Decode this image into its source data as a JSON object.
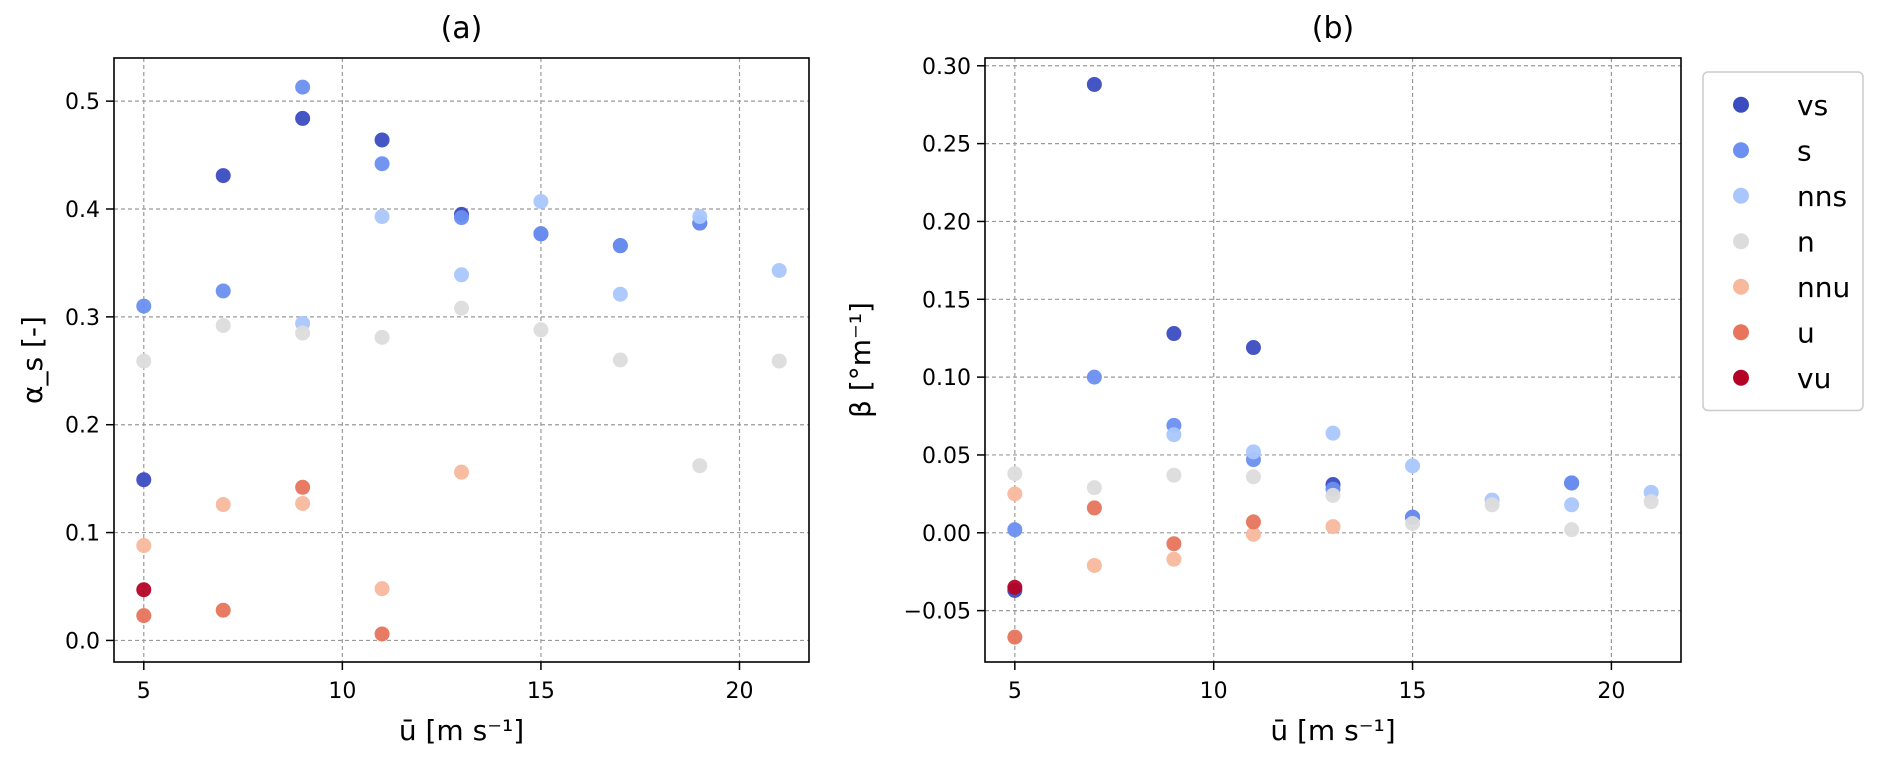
{
  "chart_data": [
    {
      "type": "scatter",
      "title": "(a)",
      "xlabel": "ū [m s⁻¹]",
      "ylabel": "α_s [-]",
      "xlim": [
        4.25,
        21.75
      ],
      "ylim": [
        -0.02,
        0.54
      ],
      "xticks": [
        5,
        10,
        15,
        20
      ],
      "yticks": [
        0.0,
        0.1,
        0.2,
        0.3,
        0.4,
        0.5
      ],
      "ytick_labels": [
        "0.0",
        "0.1",
        "0.2",
        "0.3",
        "0.4",
        "0.5"
      ],
      "grid": true,
      "series": [
        {
          "name": "vs",
          "color": "#3b4cc0",
          "points": [
            [
              5,
              0.149
            ],
            [
              7,
              0.431
            ],
            [
              9,
              0.484
            ],
            [
              11,
              0.464
            ],
            [
              13,
              0.395
            ],
            [
              15,
              0.377
            ],
            [
              17,
              0.366
            ],
            [
              19,
              0.387
            ]
          ]
        },
        {
          "name": "s",
          "color": "#6c8ff1",
          "points": [
            [
              5,
              0.31
            ],
            [
              7,
              0.324
            ],
            [
              9,
              0.513
            ],
            [
              11,
              0.442
            ],
            [
              13,
              0.392
            ],
            [
              15,
              0.377
            ],
            [
              17,
              0.366
            ],
            [
              19,
              0.387
            ]
          ]
        },
        {
          "name": "nns",
          "color": "#aac7fd",
          "points": [
            [
              9,
              0.294
            ],
            [
              11,
              0.393
            ],
            [
              13,
              0.339
            ],
            [
              15,
              0.407
            ],
            [
              17,
              0.321
            ],
            [
              19,
              0.393
            ],
            [
              21,
              0.343
            ]
          ]
        },
        {
          "name": "n",
          "color": "#dddcdc",
          "points": [
            [
              5,
              0.259
            ],
            [
              7,
              0.292
            ],
            [
              9,
              0.285
            ],
            [
              11,
              0.281
            ],
            [
              13,
              0.308
            ],
            [
              15,
              0.288
            ],
            [
              17,
              0.26
            ],
            [
              19,
              0.162
            ],
            [
              21,
              0.259
            ]
          ]
        },
        {
          "name": "nnu",
          "color": "#f7b89c",
          "points": [
            [
              5,
              0.088
            ],
            [
              7,
              0.126
            ],
            [
              9,
              0.127
            ],
            [
              11,
              0.048
            ],
            [
              13,
              0.156
            ]
          ]
        },
        {
          "name": "u",
          "color": "#e7745b",
          "points": [
            [
              5,
              0.023
            ],
            [
              7,
              0.028
            ],
            [
              9,
              0.142
            ],
            [
              11,
              0.006
            ]
          ]
        },
        {
          "name": "vu",
          "color": "#b40426",
          "points": [
            [
              5,
              0.047
            ]
          ]
        }
      ]
    },
    {
      "type": "scatter",
      "title": "(b)",
      "xlabel": "ū [m s⁻¹]",
      "ylabel": "β [°m⁻¹]",
      "xlim": [
        4.25,
        21.75
      ],
      "ylim": [
        -0.083,
        0.305
      ],
      "xticks": [
        5,
        10,
        15,
        20
      ],
      "yticks": [
        -0.05,
        0.0,
        0.05,
        0.1,
        0.15,
        0.2,
        0.25,
        0.3
      ],
      "ytick_labels": [
        "−0.05",
        "0.00",
        "0.05",
        "0.10",
        "0.15",
        "0.20",
        "0.25",
        "0.30"
      ],
      "grid": true,
      "series": [
        {
          "name": "vs",
          "color": "#3b4cc0",
          "points": [
            [
              5,
              -0.037
            ],
            [
              7,
              0.288
            ],
            [
              9,
              0.128
            ],
            [
              11,
              0.119
            ],
            [
              13,
              0.031
            ],
            [
              15,
              0.01
            ],
            [
              19,
              0.032
            ]
          ]
        },
        {
          "name": "s",
          "color": "#6c8ff1",
          "points": [
            [
              5,
              0.002
            ],
            [
              7,
              0.1
            ],
            [
              9,
              0.069
            ],
            [
              11,
              0.047
            ],
            [
              13,
              0.028
            ],
            [
              15,
              0.01
            ],
            [
              19,
              0.032
            ]
          ]
        },
        {
          "name": "nns",
          "color": "#aac7fd",
          "points": [
            [
              9,
              0.063
            ],
            [
              11,
              0.052
            ],
            [
              13,
              0.064
            ],
            [
              15,
              0.043
            ],
            [
              17,
              0.021
            ],
            [
              19,
              0.018
            ],
            [
              21,
              0.026
            ]
          ]
        },
        {
          "name": "n",
          "color": "#dddcdc",
          "points": [
            [
              5,
              0.038
            ],
            [
              7,
              0.029
            ],
            [
              9,
              0.037
            ],
            [
              11,
              0.036
            ],
            [
              13,
              0.024
            ],
            [
              15,
              0.006
            ],
            [
              17,
              0.018
            ],
            [
              19,
              0.002
            ],
            [
              21,
              0.02
            ]
          ]
        },
        {
          "name": "nnu",
          "color": "#f7b89c",
          "points": [
            [
              5,
              0.025
            ],
            [
              7,
              -0.021
            ],
            [
              9,
              -0.017
            ],
            [
              11,
              -0.001
            ],
            [
              13,
              0.004
            ]
          ]
        },
        {
          "name": "u",
          "color": "#e7745b",
          "points": [
            [
              5,
              -0.067
            ],
            [
              7,
              0.016
            ],
            [
              9,
              -0.007
            ],
            [
              11,
              0.007
            ]
          ]
        },
        {
          "name": "vu",
          "color": "#b40426",
          "points": [
            [
              5,
              -0.035
            ]
          ]
        }
      ]
    }
  ],
  "legend": {
    "placement": "right of panel (b), top",
    "entries": [
      {
        "name": "vs",
        "color": "#3b4cc0"
      },
      {
        "name": "s",
        "color": "#6c8ff1"
      },
      {
        "name": "nns",
        "color": "#aac7fd"
      },
      {
        "name": "n",
        "color": "#dddcdc"
      },
      {
        "name": "nnu",
        "color": "#f7b89c"
      },
      {
        "name": "u",
        "color": "#e7745b"
      },
      {
        "name": "vu",
        "color": "#b40426"
      }
    ]
  }
}
